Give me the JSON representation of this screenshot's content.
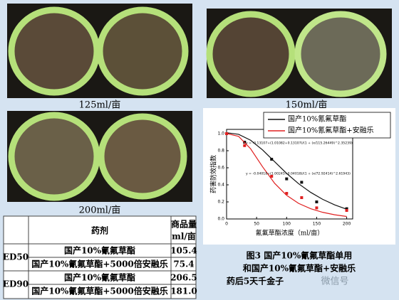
{
  "captions": [
    "125ml/亩",
    "150ml/亩",
    "200ml/亩"
  ],
  "table": {
    "header": {
      "drug": "药剂",
      "amount": [
        "商品量",
        "ml/亩"
      ]
    },
    "rows": [
      {
        "group": "ED50",
        "items": [
          [
            "国产10%氰氟草酯",
            "105.4"
          ],
          [
            "国产10%氰氟草酯+5000倍安融乐",
            "75.4"
          ]
        ]
      },
      {
        "group": "ED90",
        "items": [
          [
            "国产10%氰氟草酯",
            "206.5"
          ],
          [
            "国产10%氰氟草酯+5000倍安融乐",
            "181.0"
          ]
        ]
      }
    ]
  },
  "chart_data": {
    "type": "line",
    "xlabel": "氰氟草酯浓度（ml/亩）",
    "ylabel": "药害防效指数",
    "xlim": [
      0,
      210
    ],
    "ylim": [
      0,
      1.05
    ],
    "xticks": [
      0,
      50,
      100,
      150,
      200
    ],
    "yticks": [
      {
        "value": 0,
        "label": "0.0"
      },
      {
        "value": 0.2,
        "label": "0.2"
      },
      {
        "value": 0.4,
        "label": "0.4"
      },
      {
        "value": 0.6,
        "label": "0.6"
      },
      {
        "value": 0.8,
        "label": "0.8"
      },
      {
        "value": 1.0,
        "label": "1.0"
      }
    ],
    "legend": "top-right",
    "series": [
      {
        "name": "国产10%氰氟草酯",
        "color": "#111111",
        "equation": "y = -0.13107+(1.01082+0.13107)/(1 + (x/115.26449)^2.35239)",
        "x": [
          0,
          30,
          75,
          100,
          125,
          150,
          200
        ],
        "values": [
          1.0,
          0.9,
          0.7,
          0.47,
          0.43,
          0.2,
          0.12
        ],
        "fit_x": [
          0,
          20,
          40,
          60,
          80,
          100,
          120,
          140,
          160,
          180,
          200
        ],
        "fit_values": [
          1.011,
          0.992,
          0.923,
          0.809,
          0.671,
          0.534,
          0.413,
          0.312,
          0.23,
          0.165,
          0.114
        ]
      },
      {
        "name": "国产10%氰氟草酯+安融乐",
        "color": "#e02020",
        "equation": "y = -0.04018+(1.00245+0.04018)/(1 + (x/72.92414)^2.61943)",
        "x": [
          0,
          30,
          75,
          100,
          125,
          150,
          200
        ],
        "values": [
          1.0,
          0.86,
          0.5,
          0.3,
          0.25,
          0.13,
          0.1
        ],
        "fit_x": [
          0,
          20,
          40,
          60,
          80,
          100,
          120,
          140,
          160,
          180,
          200
        ],
        "fit_values": [
          1.002,
          0.968,
          0.823,
          0.611,
          0.418,
          0.277,
          0.182,
          0.12,
          0.078,
          0.049,
          0.029
        ]
      }
    ]
  },
  "figure_caption": [
    "图3  国产10%氰氟草酯单用",
    "和国产10%氰氟草酯+安融乐",
    "药后5天千金子"
  ],
  "watermark": "微信号"
}
